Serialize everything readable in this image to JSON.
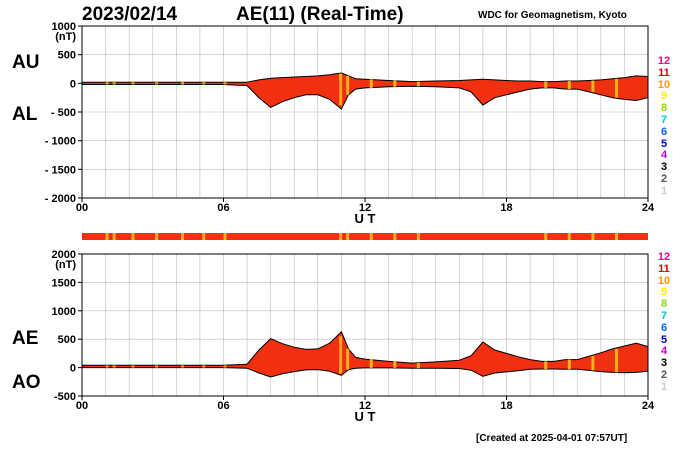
{
  "header": {
    "date": "2023/02/14",
    "title": "AE(11) (Real-Time)",
    "source": "WDC for Geomagnetism, Kyoto"
  },
  "footer": {
    "created": "[Created at 2025-04-01 07:57UT]"
  },
  "colors": {
    "fill": "#f03010",
    "outline": "#000000",
    "quality": "#f0b020",
    "grid": "#bbbbbb"
  },
  "color_scale": {
    "labels": [
      "12",
      "11",
      "10",
      "9",
      "8",
      "7",
      "6",
      "5",
      "4",
      "3",
      "2",
      "1"
    ],
    "colors": [
      "#ff0080",
      "#e00000",
      "#ff9900",
      "#ffee00",
      "#88dd00",
      "#00cccc",
      "#0066ff",
      "#0000cc",
      "#cc00cc",
      "#000000",
      "#555555",
      "#cccccc"
    ]
  },
  "quality_bar": {
    "base_color": "#f03010",
    "highlight_color": "#f0b020",
    "highlight_hours": [
      1.0,
      1.3,
      2.1,
      3.1,
      4.2,
      5.1,
      6.0,
      10.9,
      11.2,
      12.2,
      13.2,
      14.2,
      19.6,
      20.6,
      21.6,
      22.6
    ]
  },
  "chart_data": [
    {
      "type": "area",
      "xlabel": "U T",
      "ylabel": "(nT)",
      "series_labels": [
        "AU",
        "AL"
      ],
      "x_ticks": [
        "00",
        "06",
        "12",
        "18",
        "24"
      ],
      "xlim": [
        0,
        24
      ],
      "ylim": [
        -2000,
        1000
      ],
      "y_ticks": [
        1000,
        500,
        0,
        -500,
        -1000,
        -1500,
        -2000
      ],
      "y_tick_labels": [
        "1000",
        "500",
        "0",
        "- 500",
        "- 1000",
        "- 1500",
        "- 2000"
      ],
      "grid": true,
      "x": [
        0,
        1,
        2,
        3,
        4,
        5,
        6,
        7,
        7.5,
        8,
        8.5,
        9,
        9.5,
        10,
        10.5,
        10.8,
        11,
        11.3,
        11.6,
        12,
        13,
        14,
        15,
        16,
        16.5,
        17,
        17.5,
        18,
        18.5,
        19,
        19.5,
        20,
        20.5,
        21,
        21.5,
        22,
        22.5,
        23,
        23.5,
        24
      ],
      "series": [
        {
          "name": "AU",
          "values": [
            20,
            20,
            20,
            20,
            20,
            20,
            20,
            20,
            60,
            90,
            100,
            110,
            120,
            130,
            150,
            170,
            180,
            130,
            80,
            70,
            50,
            30,
            40,
            50,
            60,
            70,
            60,
            50,
            40,
            40,
            30,
            30,
            40,
            40,
            50,
            60,
            80,
            100,
            130,
            120
          ]
        },
        {
          "name": "AL",
          "values": [
            -20,
            -20,
            -20,
            -20,
            -20,
            -20,
            -20,
            -40,
            -250,
            -420,
            -320,
            -250,
            -200,
            -200,
            -280,
            -380,
            -450,
            -200,
            -100,
            -80,
            -60,
            -50,
            -60,
            -80,
            -150,
            -380,
            -250,
            -200,
            -150,
            -100,
            -80,
            -80,
            -100,
            -100,
            -150,
            -200,
            -250,
            -280,
            -300,
            -250
          ]
        }
      ]
    },
    {
      "type": "area",
      "xlabel": "U T",
      "ylabel": "(nT)",
      "series_labels": [
        "AE",
        "AO"
      ],
      "x_ticks": [
        "00",
        "06",
        "12",
        "18",
        "24"
      ],
      "xlim": [
        0,
        24
      ],
      "ylim": [
        -500,
        2000
      ],
      "y_ticks": [
        2000,
        1500,
        1000,
        500,
        0,
        -500
      ],
      "y_tick_labels": [
        "2000",
        "1500",
        "1000",
        "500",
        "0",
        "-500"
      ],
      "grid": true,
      "x": [
        0,
        1,
        2,
        3,
        4,
        5,
        6,
        7,
        7.5,
        8,
        8.5,
        9,
        9.5,
        10,
        10.5,
        10.8,
        11,
        11.3,
        11.6,
        12,
        13,
        14,
        15,
        16,
        16.5,
        17,
        17.5,
        18,
        18.5,
        19,
        19.5,
        20,
        20.5,
        21,
        21.5,
        22,
        22.5,
        23,
        23.5,
        24
      ],
      "series": [
        {
          "name": "AE",
          "values": [
            40,
            40,
            40,
            40,
            40,
            40,
            40,
            60,
            310,
            510,
            420,
            360,
            320,
            330,
            430,
            550,
            630,
            330,
            180,
            150,
            110,
            80,
            100,
            130,
            210,
            450,
            310,
            250,
            190,
            140,
            110,
            110,
            140,
            140,
            200,
            260,
            330,
            380,
            430,
            370
          ]
        },
        {
          "name": "AO",
          "values": [
            0,
            0,
            0,
            0,
            0,
            0,
            0,
            -10,
            -95,
            -165,
            -110,
            -70,
            -40,
            -35,
            -65,
            -105,
            -135,
            -35,
            -10,
            -5,
            -5,
            -10,
            -10,
            -15,
            -45,
            -155,
            -95,
            -75,
            -55,
            -30,
            -25,
            -25,
            -30,
            -30,
            -50,
            -70,
            -85,
            -90,
            -85,
            -65
          ]
        }
      ]
    }
  ]
}
